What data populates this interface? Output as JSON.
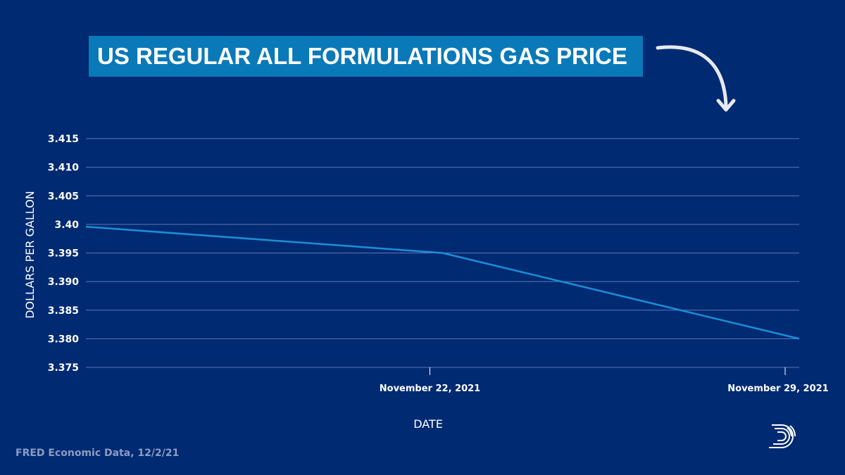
{
  "chart_data": {
    "type": "line",
    "title": "US REGULAR ALL FORMULATIONS GAS PRICE",
    "xlabel": "DATE",
    "ylabel": "DOLLARS PER GALLON",
    "ylim": [
      3.375,
      3.415
    ],
    "yticks": [
      "3.415",
      "3.410",
      "3.405",
      "3.40",
      "3.395",
      "3.390",
      "3.385",
      "3.380",
      "3.375"
    ],
    "ytick_values": [
      3.415,
      3.41,
      3.405,
      3.4,
      3.395,
      3.39,
      3.385,
      3.38,
      3.375
    ],
    "xticks": [
      "November 22, 2021",
      "November 29, 2021"
    ],
    "grid": true,
    "series": [
      {
        "name": "US Regular All Formulations Gas Price",
        "color": "#1b8fd6",
        "x": [
          "2021-11-15",
          "2021-11-22",
          "2021-11-29"
        ],
        "values": [
          3.3996,
          3.395,
          3.38
        ]
      }
    ]
  },
  "source": "FRED Economic Data, 12/2/21",
  "colors": {
    "background": "#002a72",
    "title_box": "#0a79b8",
    "gridline": "#5d78b4",
    "line": "#1b8fd6"
  },
  "logo": {
    "icon": "d-stripes-logo-icon"
  },
  "arrow": {
    "icon": "curved-arrow-down-icon"
  }
}
